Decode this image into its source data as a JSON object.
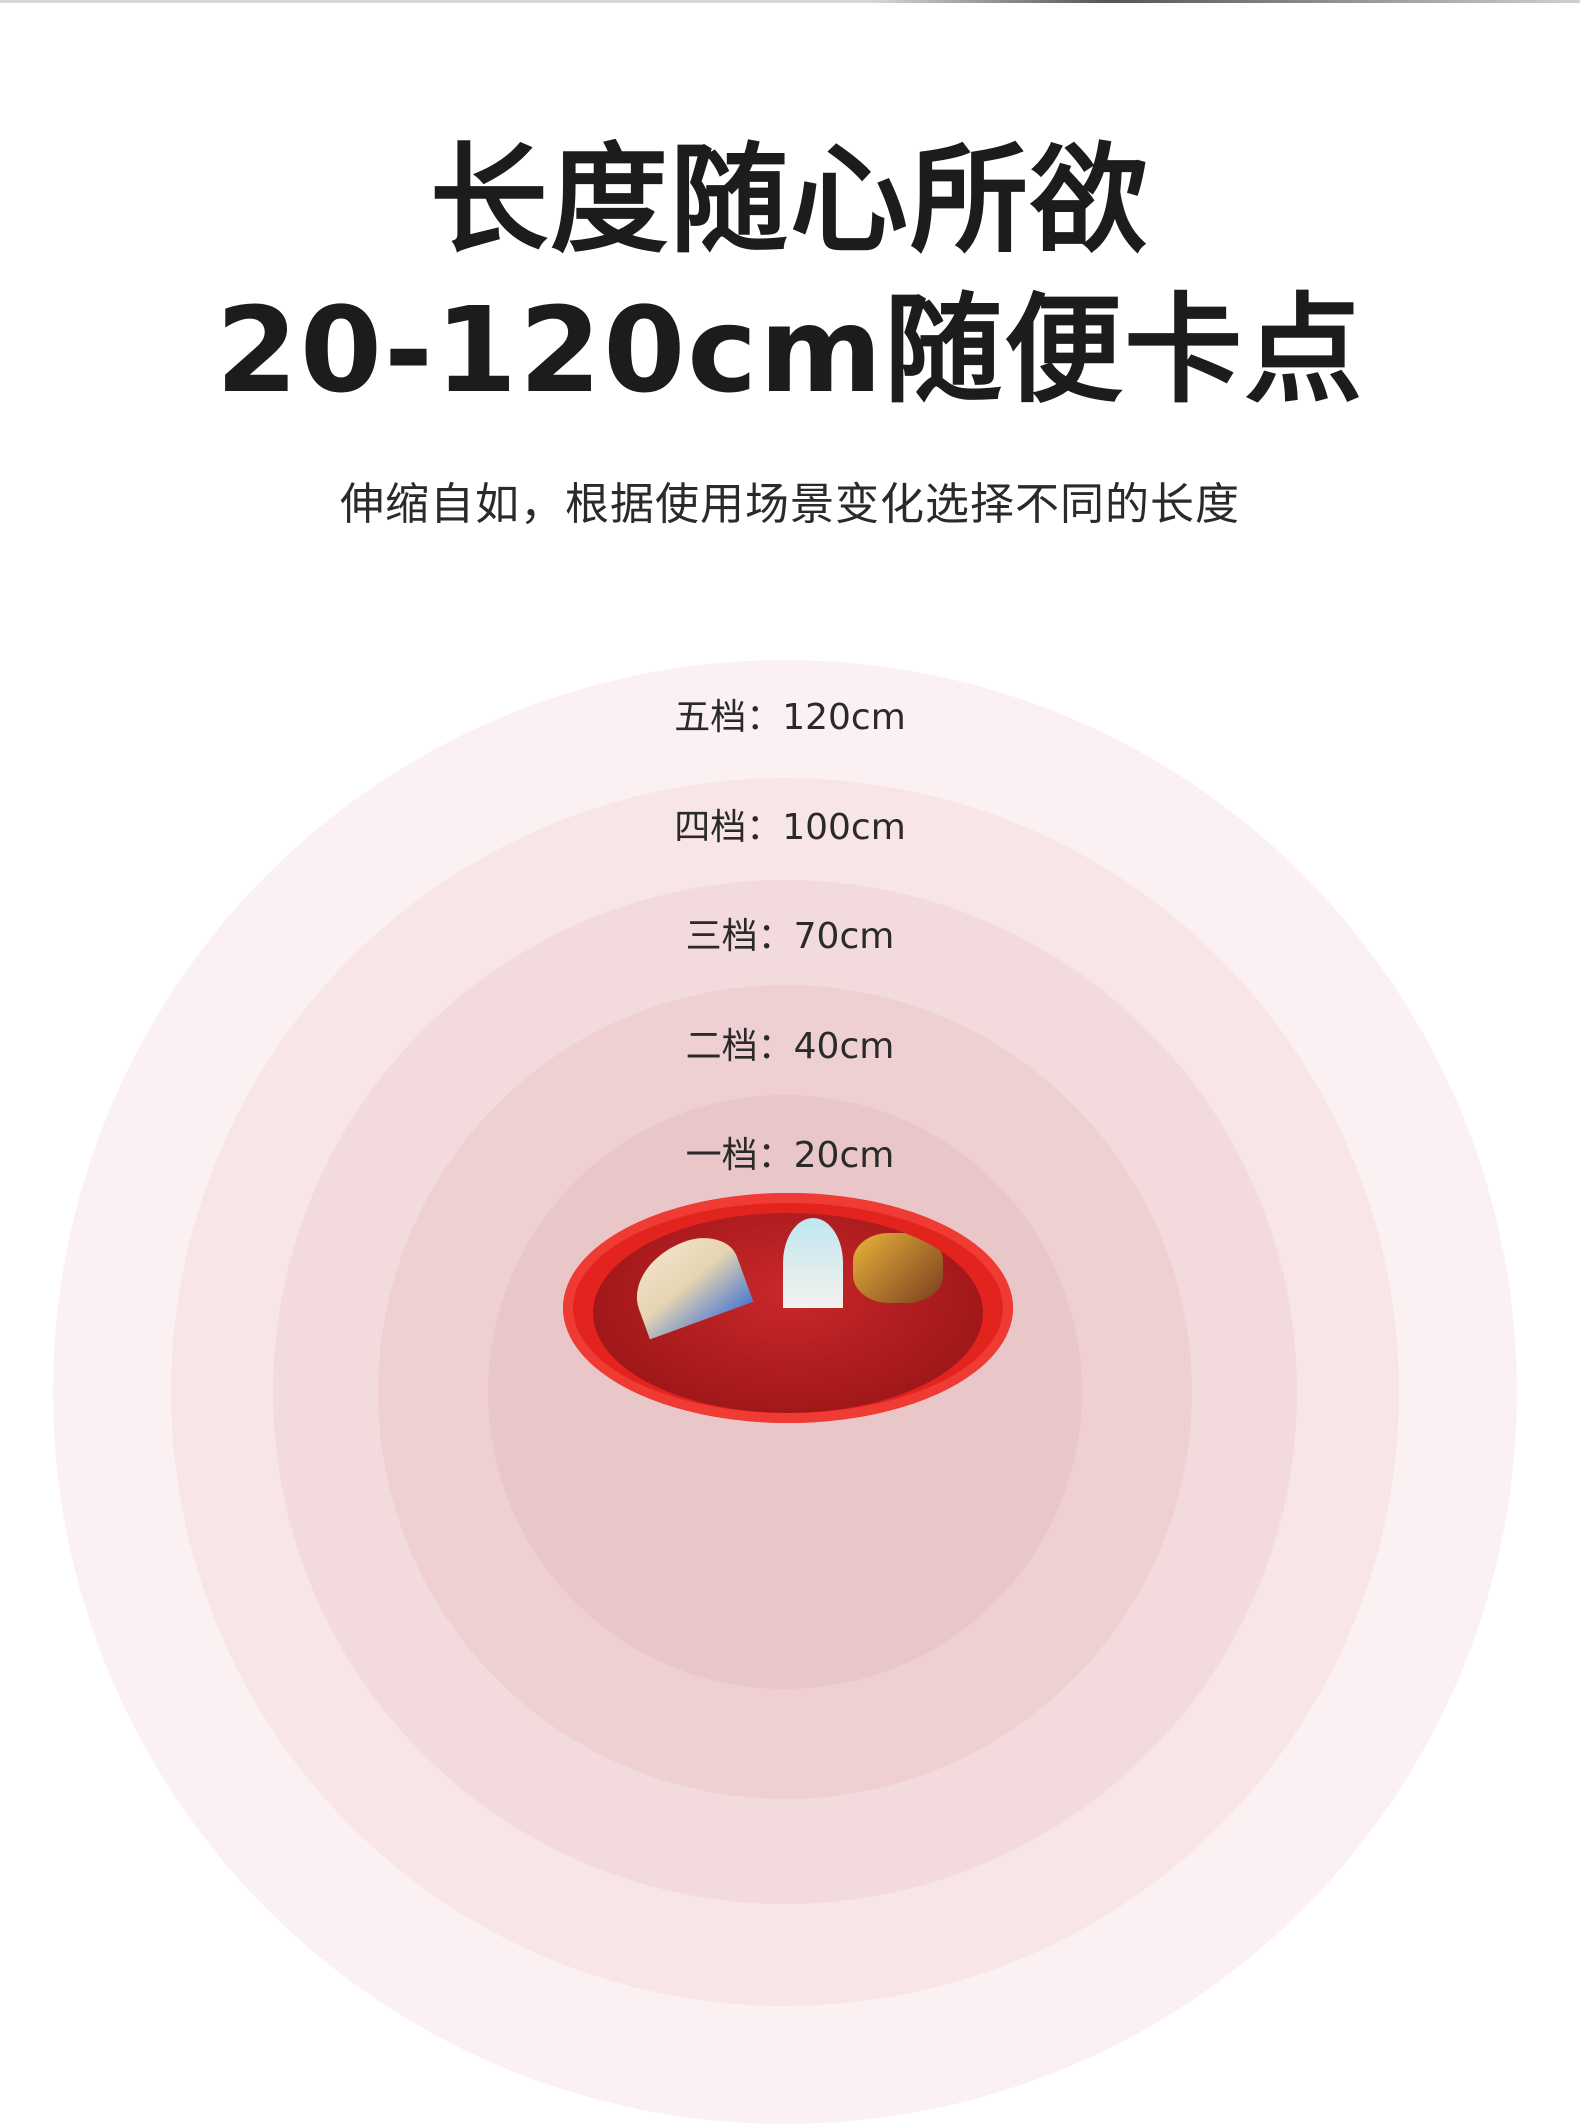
{
  "heading": {
    "line1": "长度随心所欲",
    "line2": "20-120cm随便卡点"
  },
  "subtitle": "伸缩自如，根据使用场景变化选择不同的长度",
  "levels": [
    {
      "label": "五档：120cm",
      "color": "#fcf1f2"
    },
    {
      "label": "四档：100cm",
      "color": "#f8e5e7"
    },
    {
      "label": "三档：70cm",
      "color": "#f3dadc"
    },
    {
      "label": "二档：40cm",
      "color": "#eed0d2"
    },
    {
      "label": "一档：20cm",
      "color": "#e9c6c8"
    }
  ],
  "product": {
    "name": "red-tray-illustration",
    "color": "#e2231e"
  }
}
